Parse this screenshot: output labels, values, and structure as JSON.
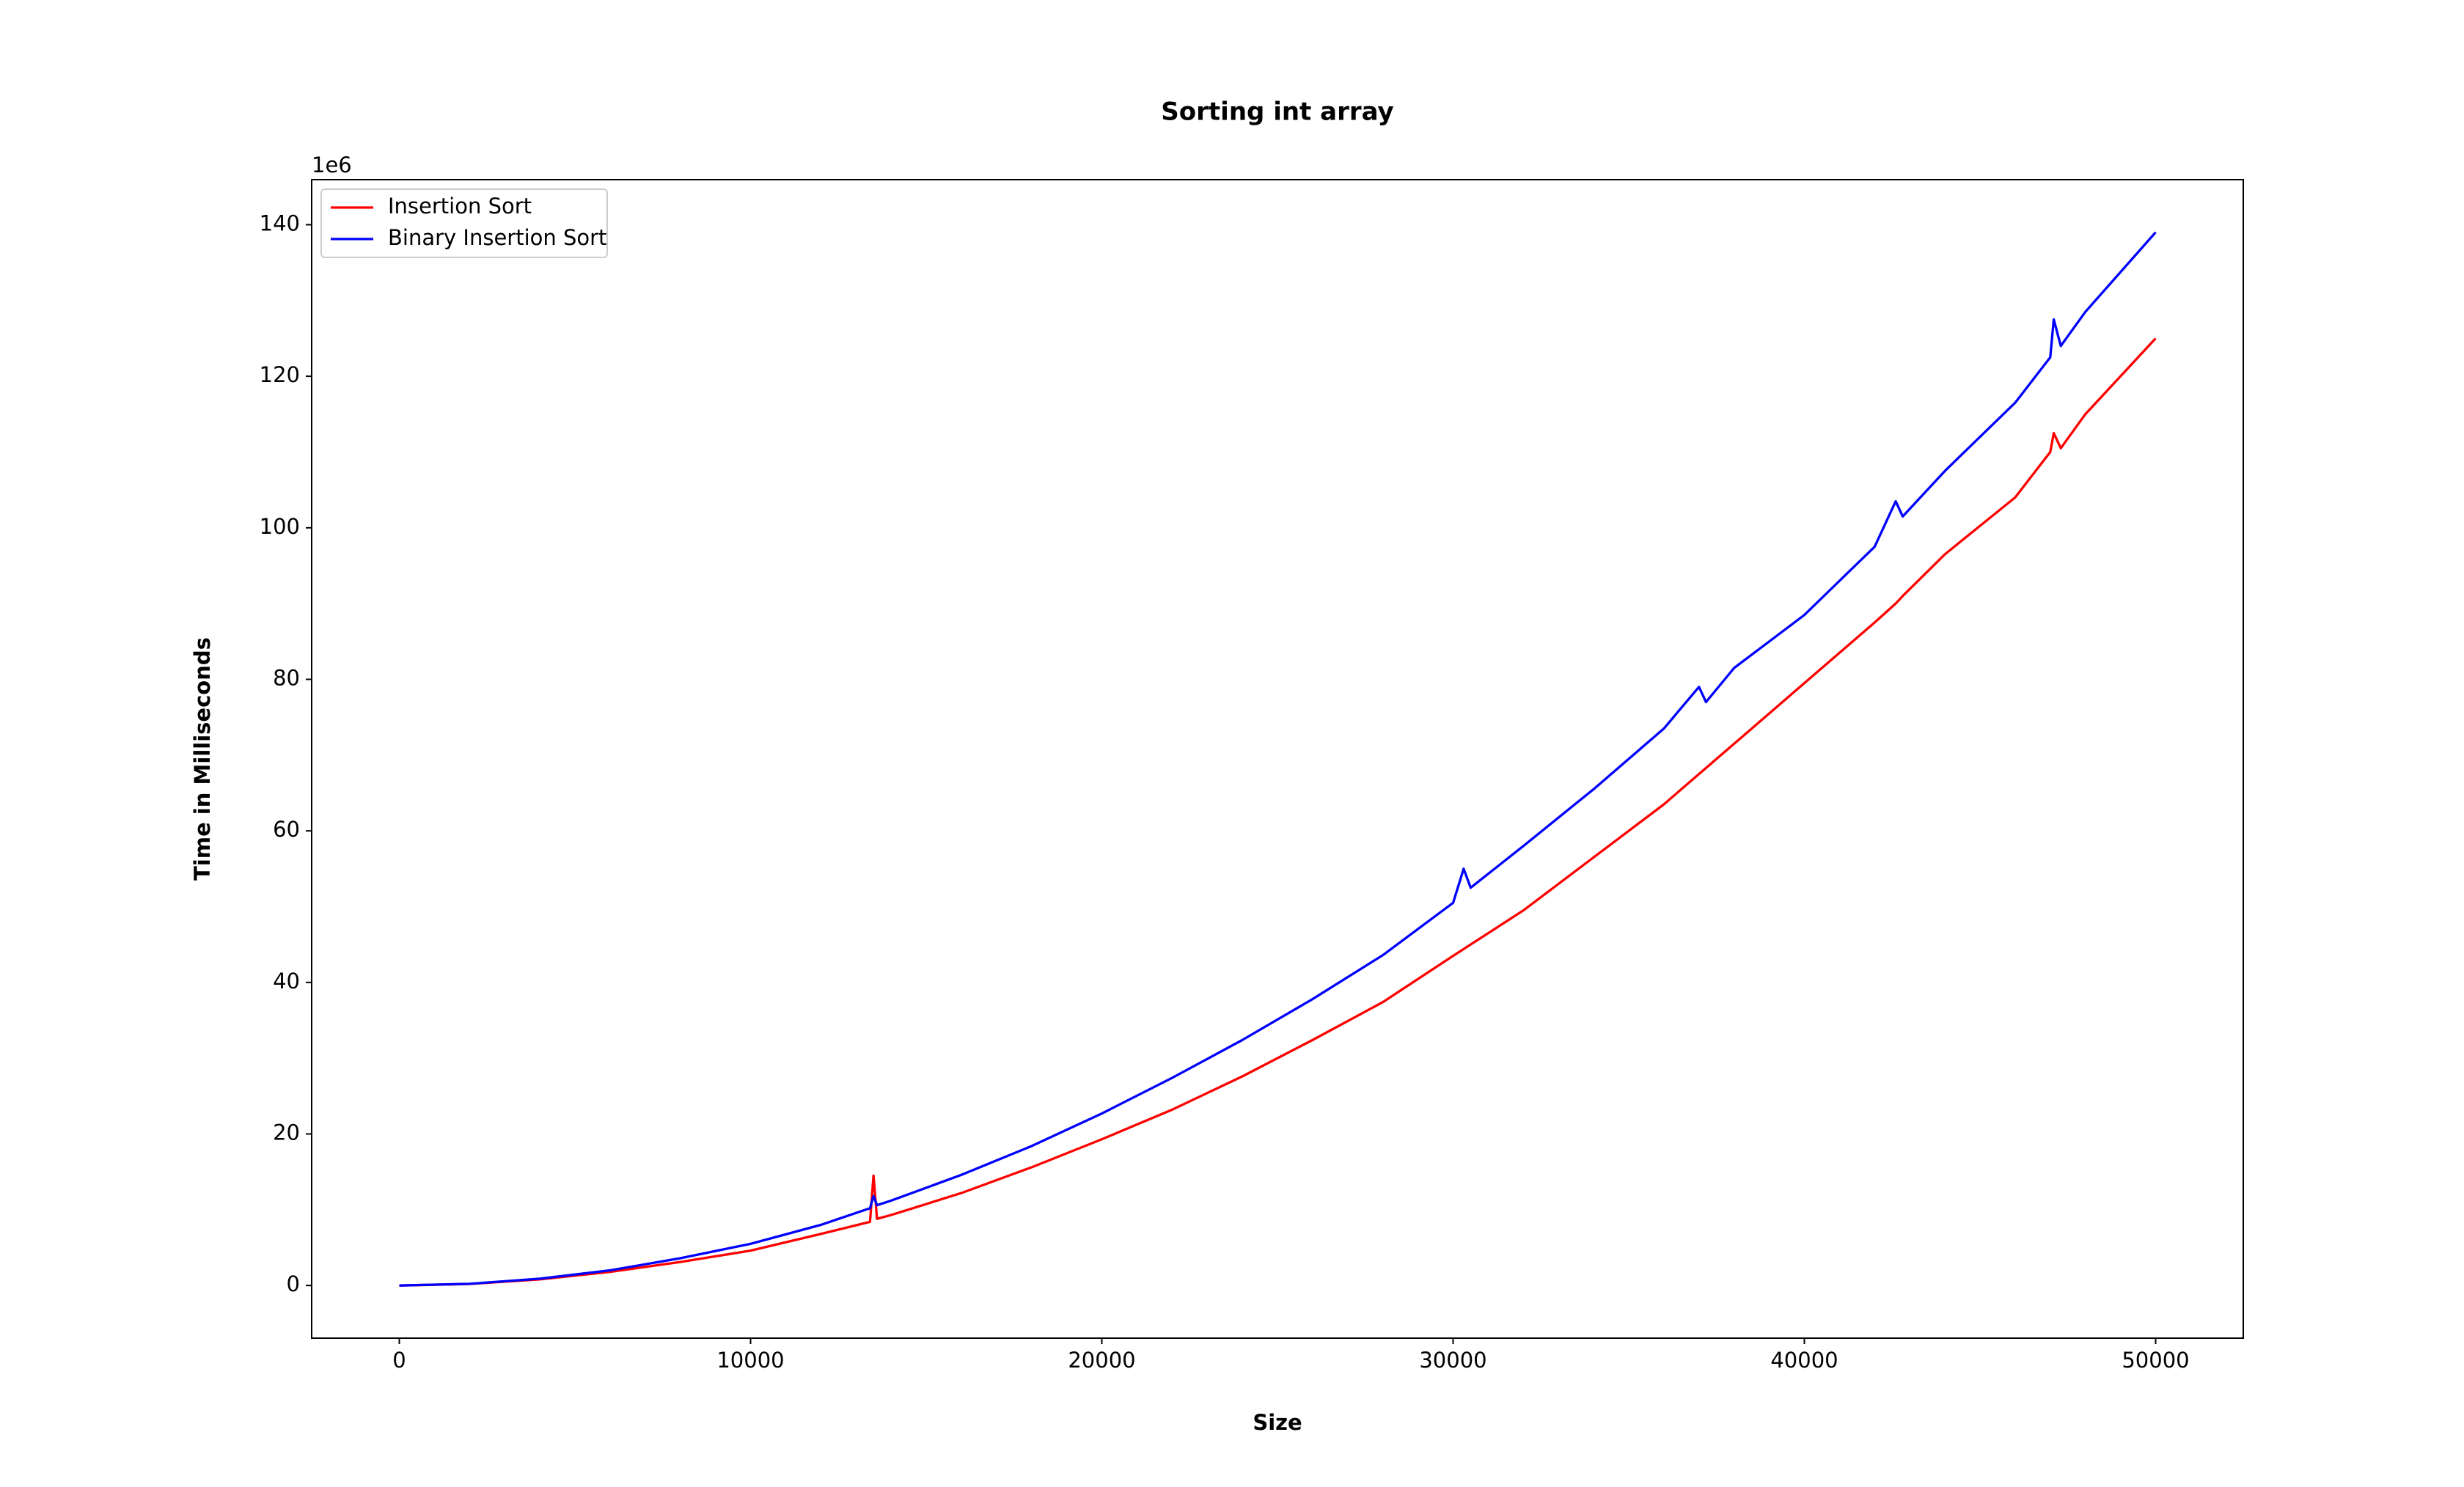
{
  "chart_data": {
    "type": "line",
    "title": "Sorting int array",
    "x_label": "Size",
    "y_label": "Time in Milliseconds",
    "y_offset_label": "1e6",
    "x": [
      0,
      2000,
      4000,
      6000,
      8000,
      10000,
      12000,
      13400,
      13500,
      13600,
      14000,
      16000,
      18000,
      20000,
      22000,
      24000,
      26000,
      28000,
      30000,
      30300,
      30500,
      32000,
      34000,
      36000,
      37000,
      37200,
      38000,
      40000,
      42000,
      42600,
      42800,
      44000,
      46000,
      47000,
      47100,
      47300,
      48000,
      50000
    ],
    "series": [
      {
        "name": "Insertion Sort",
        "color": "#ff0000",
        "values": [
          0,
          0.2,
          0.8,
          1.8,
          3.1,
          4.6,
          6.8,
          8.4,
          14.5,
          8.8,
          9.3,
          12.2,
          15.6,
          19.3,
          23.2,
          27.6,
          32.4,
          37.4,
          43.5,
          44.4,
          45.0,
          49.5,
          56.5,
          63.5,
          67.5,
          68.3,
          71.5,
          79.5,
          87.5,
          90,
          91,
          96.5,
          104,
          110,
          112.5,
          110.5,
          115,
          125
        ]
      },
      {
        "name": "Binary Insertion Sort",
        "color": "#0000ff",
        "values": [
          0,
          0.22,
          0.9,
          2.0,
          3.6,
          5.5,
          8.0,
          10.2,
          11.8,
          10.6,
          11.2,
          14.6,
          18.4,
          22.7,
          27.4,
          32.4,
          37.8,
          43.6,
          50.5,
          55.0,
          52.5,
          58.0,
          65.5,
          73.5,
          79.0,
          77.0,
          81.5,
          88.5,
          97.5,
          103.5,
          101.5,
          107.5,
          116.5,
          122.5,
          127.5,
          124.0,
          128.5,
          139.0
        ]
      }
    ],
    "xlim": [
      -2495,
      52495
    ],
    "ylim": [
      -6.95,
      145.95
    ],
    "xticks": [
      0,
      10000,
      20000,
      30000,
      40000,
      50000
    ],
    "yticks": [
      0,
      20,
      40,
      60,
      80,
      100,
      120,
      140
    ],
    "legend": "upper left"
  }
}
